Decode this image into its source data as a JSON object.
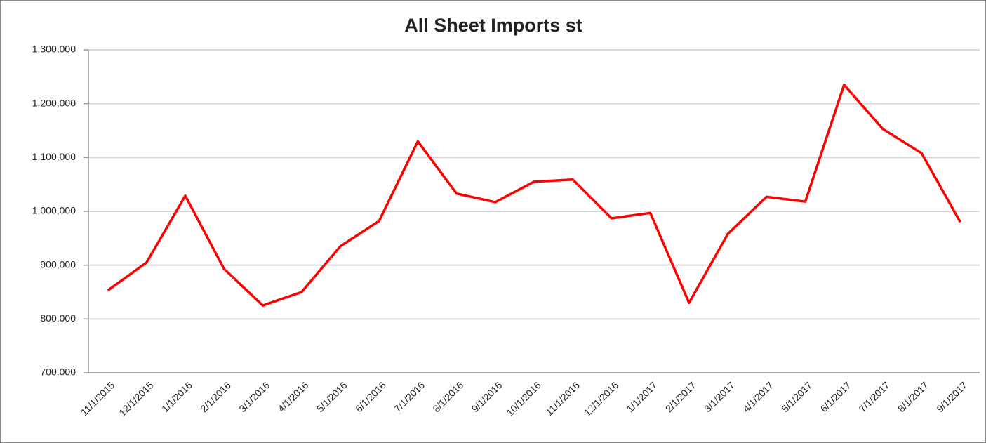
{
  "chart_data": {
    "type": "line",
    "title": "All Sheet Imports st",
    "categories": [
      "11/1/2015",
      "12/1/2015",
      "1/1/2016",
      "2/1/2016",
      "3/1/2016",
      "4/1/2016",
      "5/1/2016",
      "6/1/2016",
      "7/1/2016",
      "8/1/2016",
      "9/1/2016",
      "10/1/2016",
      "11/1/2016",
      "12/1/2016",
      "1/1/2017",
      "2/1/2017",
      "3/1/2017",
      "4/1/2017",
      "5/1/2017",
      "6/1/2017",
      "7/1/2017",
      "8/1/2017",
      "9/1/2017"
    ],
    "values": [
      853000,
      905000,
      1029000,
      893000,
      825000,
      850000,
      935000,
      982000,
      1130000,
      1033000,
      1017000,
      1055000,
      1059000,
      987000,
      997000,
      830000,
      958000,
      1027000,
      1018000,
      1235000,
      1153000,
      1108000,
      980000
    ],
    "color": "#ff0000",
    "ylim": [
      700000,
      1300000
    ],
    "yticks": [
      {
        "value": 700000,
        "label": "700,000"
      },
      {
        "value": 800000,
        "label": "800,000"
      },
      {
        "value": 900000,
        "label": "900,000"
      },
      {
        "value": 1000000,
        "label": "1,000,000"
      },
      {
        "value": 1100000,
        "label": "1,100,000"
      },
      {
        "value": 1200000,
        "label": "1,200,000"
      },
      {
        "value": 1300000,
        "label": "1,300,000"
      }
    ],
    "grid": true
  }
}
